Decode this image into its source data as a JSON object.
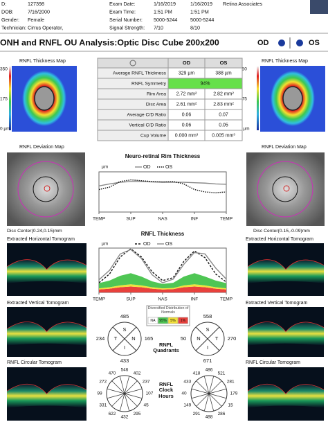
{
  "header": {
    "rows": [
      [
        "D:",
        "127398",
        "Exam Date:",
        "1/16/2019",
        "1/16/2019"
      ],
      [
        "DOB:",
        "7/16/2000",
        "Exam Time:",
        "1:51 PM",
        "1:51 PM"
      ],
      [
        "Gender:",
        "Female",
        "Serial Number:",
        "5000-5244",
        "5000-5244"
      ],
      [
        "Technician:",
        "Cirrus Operator,",
        "Signal Strength:",
        "7/10",
        "8/10"
      ]
    ],
    "org": "Retina Associates"
  },
  "title": "ONH and RNFL OU Analysis:Optic Disc Cube 200x200",
  "eye_od": "OD",
  "eye_os": "OS",
  "thickness_map": {
    "title": "RNFL Thickness Map",
    "scale": [
      "350",
      "175",
      "0 µm"
    ]
  },
  "table": {
    "header": [
      "OD",
      "OS"
    ],
    "rows": [
      [
        "Average RNFL Thickness",
        "329 µm",
        "388 µm"
      ],
      [
        "RNFL Symmetry",
        "94%"
      ],
      [
        "Rim Area",
        "2.72 mm²",
        "2.82 mm²"
      ],
      [
        "Disc Area",
        "2.61 mm²",
        "2.83 mm²"
      ],
      [
        "Average C/D Ratio",
        "0.06",
        "0.07"
      ],
      [
        "Vertical C/D Ratio",
        "0.06",
        "0.05"
      ],
      [
        "Cup Volume",
        "0.000 mm³",
        "0.005 mm³"
      ]
    ]
  },
  "deviation_map": "RNFL Deviation Map",
  "disc_center": {
    "od": "Disc Center(0.24,0.15)mm",
    "os": "Disc Center(0.15,-0.09)mm"
  },
  "tomograms": {
    "horizontal": "Extracted Horizontal Tomogram",
    "vertical": "Extracted Vertical Tomogram",
    "circular": "RNFL Circular Tomogram"
  },
  "rim_chart": {
    "type": "line",
    "title": "Neuro-retinal Rim Thickness",
    "unit": "µm",
    "x": [
      0,
      30,
      60,
      90,
      120,
      150,
      180,
      210,
      240,
      270,
      300,
      330,
      360
    ],
    "xlim": [
      0,
      360
    ],
    "xticks": [
      {
        "value": 0,
        "label": "TEMP"
      },
      {
        "value": 90,
        "label": "SUP"
      },
      {
        "value": 180,
        "label": "NAS"
      },
      {
        "value": 270,
        "label": "INF"
      },
      {
        "value": 360,
        "label": "TEMP"
      }
    ],
    "ylim": [
      0,
      1000
    ],
    "series": [
      {
        "name": "OD",
        "color": "#888888",
        "dash": "none",
        "values": [
          650,
          700,
          740,
          760,
          760,
          750,
          740,
          740,
          740,
          730,
          720,
          700,
          690
        ]
      },
      {
        "name": "OS",
        "color": "#111111",
        "dash": "1.5,1.5",
        "values": [
          560,
          620,
          760,
          800,
          780,
          760,
          750,
          760,
          700,
          560,
          500,
          480,
          500
        ]
      }
    ]
  },
  "rnfl_chart": {
    "type": "line",
    "title": "RNFL Thickness",
    "unit": "µm",
    "x": [
      0,
      30,
      60,
      90,
      120,
      150,
      180,
      210,
      240,
      270,
      300,
      330,
      360
    ],
    "xlim": [
      0,
      360
    ],
    "xticks": [
      {
        "value": 0,
        "label": "TEMP"
      },
      {
        "value": 90,
        "label": "SUP"
      },
      {
        "value": 180,
        "label": "NAS"
      },
      {
        "value": 270,
        "label": "INF"
      },
      {
        "value": 360,
        "label": "TEMP"
      }
    ],
    "ylim": [
      0,
      600
    ],
    "bands": [
      {
        "name": "1%",
        "color": "#e8413c",
        "values": [
          40,
          50,
          70,
          80,
          70,
          50,
          40,
          45,
          70,
          80,
          70,
          50,
          40
        ]
      },
      {
        "name": "5%",
        "color": "#f2e03c",
        "values": [
          15,
          20,
          25,
          30,
          25,
          20,
          15,
          15,
          25,
          30,
          25,
          20,
          15
        ]
      },
      {
        "name": "95%",
        "color": "#4fc654",
        "values": [
          70,
          90,
          130,
          150,
          120,
          80,
          60,
          70,
          120,
          150,
          120,
          90,
          70
        ]
      }
    ],
    "series": [
      {
        "name": "OD",
        "color": "#111111",
        "dash": "3,2",
        "values": [
          130,
          250,
          480,
          590,
          480,
          280,
          160,
          200,
          420,
          560,
          470,
          250,
          140
        ]
      },
      {
        "name": "OS",
        "color": "#888888",
        "dash": "none",
        "values": [
          170,
          300,
          520,
          580,
          460,
          240,
          130,
          180,
          380,
          540,
          520,
          330,
          180
        ]
      }
    ]
  },
  "normals_legend": {
    "title": "Diversified Distribution of Normals",
    "na": "NA"
  },
  "quadrants": {
    "title": "RNFL Quadrants",
    "od": {
      "sectors": [
        "S",
        "N",
        "I",
        "T"
      ],
      "values": [
        485,
        165,
        433,
        234
      ]
    },
    "os": {
      "sectors": [
        "S",
        "T",
        "I",
        "N"
      ],
      "values": [
        558,
        270,
        671,
        50
      ]
    }
  },
  "clock_hours": {
    "title": "RNFL Clock Hours",
    "od": [
      546,
      402,
      237,
      107,
      45,
      295,
      432,
      622,
      331,
      99,
      272,
      470
    ],
    "os": [
      486,
      521,
      281,
      179,
      15,
      286,
      488,
      291,
      149,
      40,
      433,
      418
    ]
  }
}
